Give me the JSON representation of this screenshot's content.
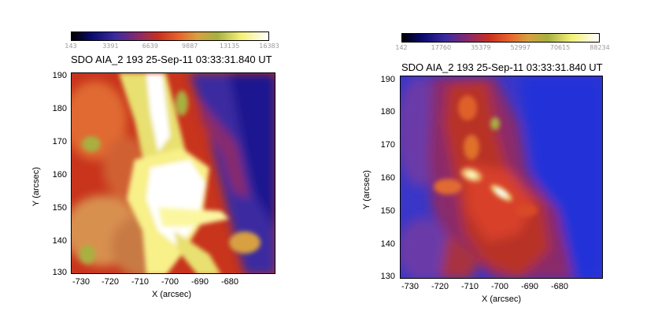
{
  "panels": [
    {
      "title": "SDO AIA_2 193 25-Sep-11 03:33:31.840 UT",
      "colorbar": {
        "ticks": [
          "143",
          "3391",
          "6639",
          "9887",
          "13135",
          "16383"
        ]
      },
      "y_ticks": [
        "190",
        "180",
        "170",
        "160",
        "150",
        "140",
        "130"
      ],
      "x_ticks": [
        "-730",
        "-720",
        "-710",
        "-700",
        "-690",
        "-680"
      ],
      "xlabel": "X (arcsec)",
      "ylabel": "Y (arcsec)"
    },
    {
      "title": "SDO AIA_2 193 25-Sep-11 03:33:31.840 UT",
      "colorbar": {
        "ticks": [
          "142",
          "17760",
          "35379",
          "52997",
          "70615",
          "88234"
        ]
      },
      "y_ticks": [
        "190",
        "180",
        "170",
        "160",
        "150",
        "140",
        "130"
      ],
      "x_ticks": [
        "-730",
        "-720",
        "-710",
        "-700",
        "-690",
        "-680"
      ],
      "xlabel": "X (arcsec)",
      "ylabel": "Y (arcsec)"
    }
  ],
  "colors": {
    "colormap": [
      "#000000",
      "#0a0a6e",
      "#3a2aa0",
      "#8a2a6a",
      "#c83020",
      "#e8602a",
      "#d8a040",
      "#a8b040",
      "#f4f078",
      "#ffffff"
    ]
  }
}
